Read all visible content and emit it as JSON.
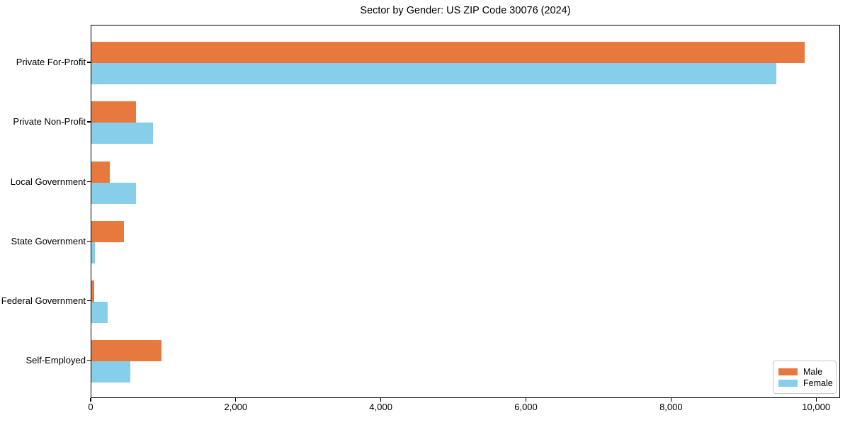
{
  "title": "Sector by Gender: US ZIP Code 30076 (2024)",
  "chart_data": {
    "type": "bar",
    "orientation": "horizontal",
    "title": "Sector by Gender: US ZIP Code 30076 (2024)",
    "xlabel": "",
    "ylabel": "",
    "categories": [
      "Private For-Profit",
      "Private Non-Profit",
      "Local Government",
      "State Government",
      "Federal Government",
      "Self-Employed"
    ],
    "series": [
      {
        "name": "Male",
        "color": "#e8793e",
        "values": [
          9830,
          615,
          255,
          450,
          40,
          965
        ]
      },
      {
        "name": "Female",
        "color": "#87ceeb",
        "values": [
          9445,
          850,
          615,
          50,
          225,
          535
        ]
      }
    ],
    "xlim": [
      0,
      10330
    ],
    "xticks": [
      0,
      2000,
      4000,
      6000,
      8000,
      10000
    ],
    "xtick_labels": [
      "0",
      "2,000",
      "4,000",
      "6,000",
      "8,000",
      "10,000"
    ],
    "grid": false,
    "legend": {
      "position": "lower-right",
      "entries": [
        "Male",
        "Female"
      ]
    },
    "colors": {
      "male": "#e8793e",
      "female": "#87ceeb",
      "axis": "#000000",
      "background": "#ffffff"
    }
  }
}
